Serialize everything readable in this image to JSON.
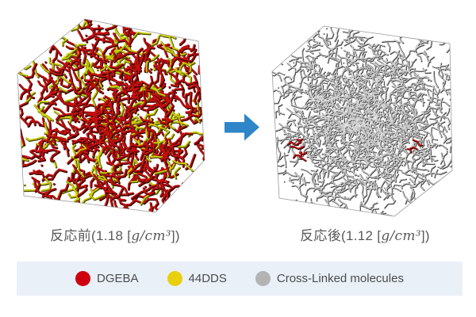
{
  "figure": {
    "before": {
      "caption_prefix": "反応前(1.18 [",
      "caption_unit": "g/cm³",
      "caption_suffix": "])"
    },
    "after": {
      "caption_prefix": "反応後(1.12 [",
      "caption_unit": "g/cm³",
      "caption_suffix": "])"
    },
    "arrow_color": "#2e86c8",
    "molecule_colors": {
      "dgeba": "#c3100f",
      "dgeba_shadow": "#3c0602",
      "dds44": "#ccd104",
      "dds44_shadow": "#54520a",
      "crosslinked": "#cbcbcb",
      "crosslinked_shadow": "#474747",
      "crosslinked_highlight": "#f4f4f4"
    },
    "box_outline_color": "#9a9a9a"
  },
  "legend": {
    "background": "#e9f0f8",
    "items": [
      {
        "label": "DGEBA",
        "color": "#cf000e"
      },
      {
        "label": "44DDS",
        "color": "#e9d00e"
      },
      {
        "label": "Cross-Linked molecules",
        "color": "#b3b3b3"
      }
    ]
  }
}
